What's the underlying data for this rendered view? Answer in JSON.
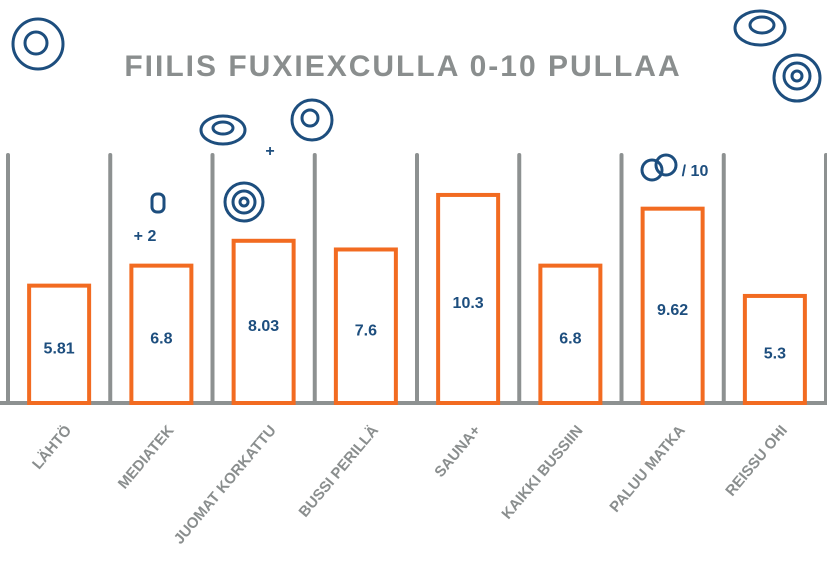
{
  "chart_data": {
    "type": "bar",
    "title": "FIILIS FUXIEXCULLA 0-10 PULLAA",
    "categories": [
      "LÄHTÖ",
      "MEDIATEK",
      "JUOMAT KORKATTU",
      "BUSSI PERILLÄ",
      "SAUNA+",
      "KAIKKI BUSSIIN",
      "PALUU MATKA",
      "REISSU OHI"
    ],
    "values": [
      5.81,
      6.8,
      8.03,
      7.6,
      10.3,
      6.8,
      9.62,
      5.3
    ],
    "color": "#f26b21",
    "annotations": [
      "+ 2",
      "+",
      "/ 10"
    ]
  }
}
